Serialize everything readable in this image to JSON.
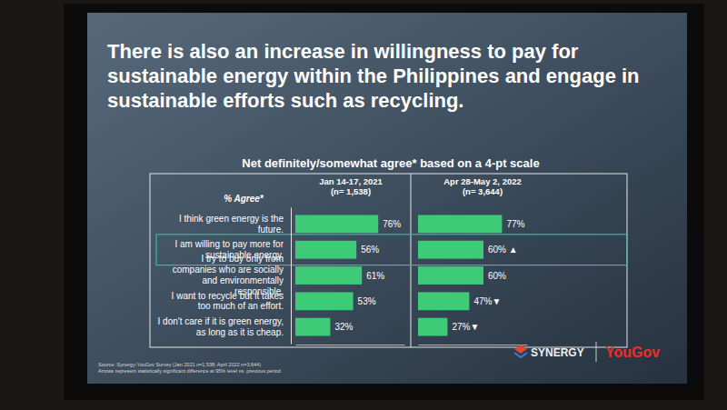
{
  "chart_data": {
    "type": "bar",
    "orientation": "horizontal",
    "title": "There is also an increase in willingness to pay for sustainable energy within the Philippines and engage in sustainable efforts such as recycling.",
    "subtitle": "Net definitely/somewhat agree* based on a 4-pt scale",
    "column_header": "% Agree*",
    "categories": [
      "I think green energy is the future.",
      "I am willing to pay more for sustainable energy.",
      "I try to buy only from companies who are socially and environmentally responsible.",
      "I want to recycle but it takes too much of an effort.",
      "I don't care if it is green energy, as long as it is cheap."
    ],
    "series": [
      {
        "name": "Jan 14-17, 2021 (n= 1,538)",
        "color": "#3ecb78",
        "values": [
          76,
          56,
          61,
          53,
          32
        ],
        "value_labels": [
          "76%",
          "56%",
          "61%",
          "53%",
          "32%"
        ]
      },
      {
        "name": "Apr 28-May 2, 2022 (n= 3,644)",
        "color": "#3ecb78",
        "values": [
          77,
          60,
          60,
          47,
          27
        ],
        "value_labels": [
          "77%",
          "60% ▲",
          "60%",
          "47%▼",
          "27%▼"
        ]
      }
    ],
    "xlim": [
      0,
      100
    ],
    "tick_labels": "y",
    "data_labels": true,
    "grid": false,
    "notes": [
      "Source: Synergy-YouGov Survey (Jan 2021 n=1,538; April 2022 n=3,644)",
      "Arrows represent statistically significant difference at 95% level vs. previous period"
    ],
    "logos": [
      "SYNERGY",
      "YouGov"
    ]
  }
}
